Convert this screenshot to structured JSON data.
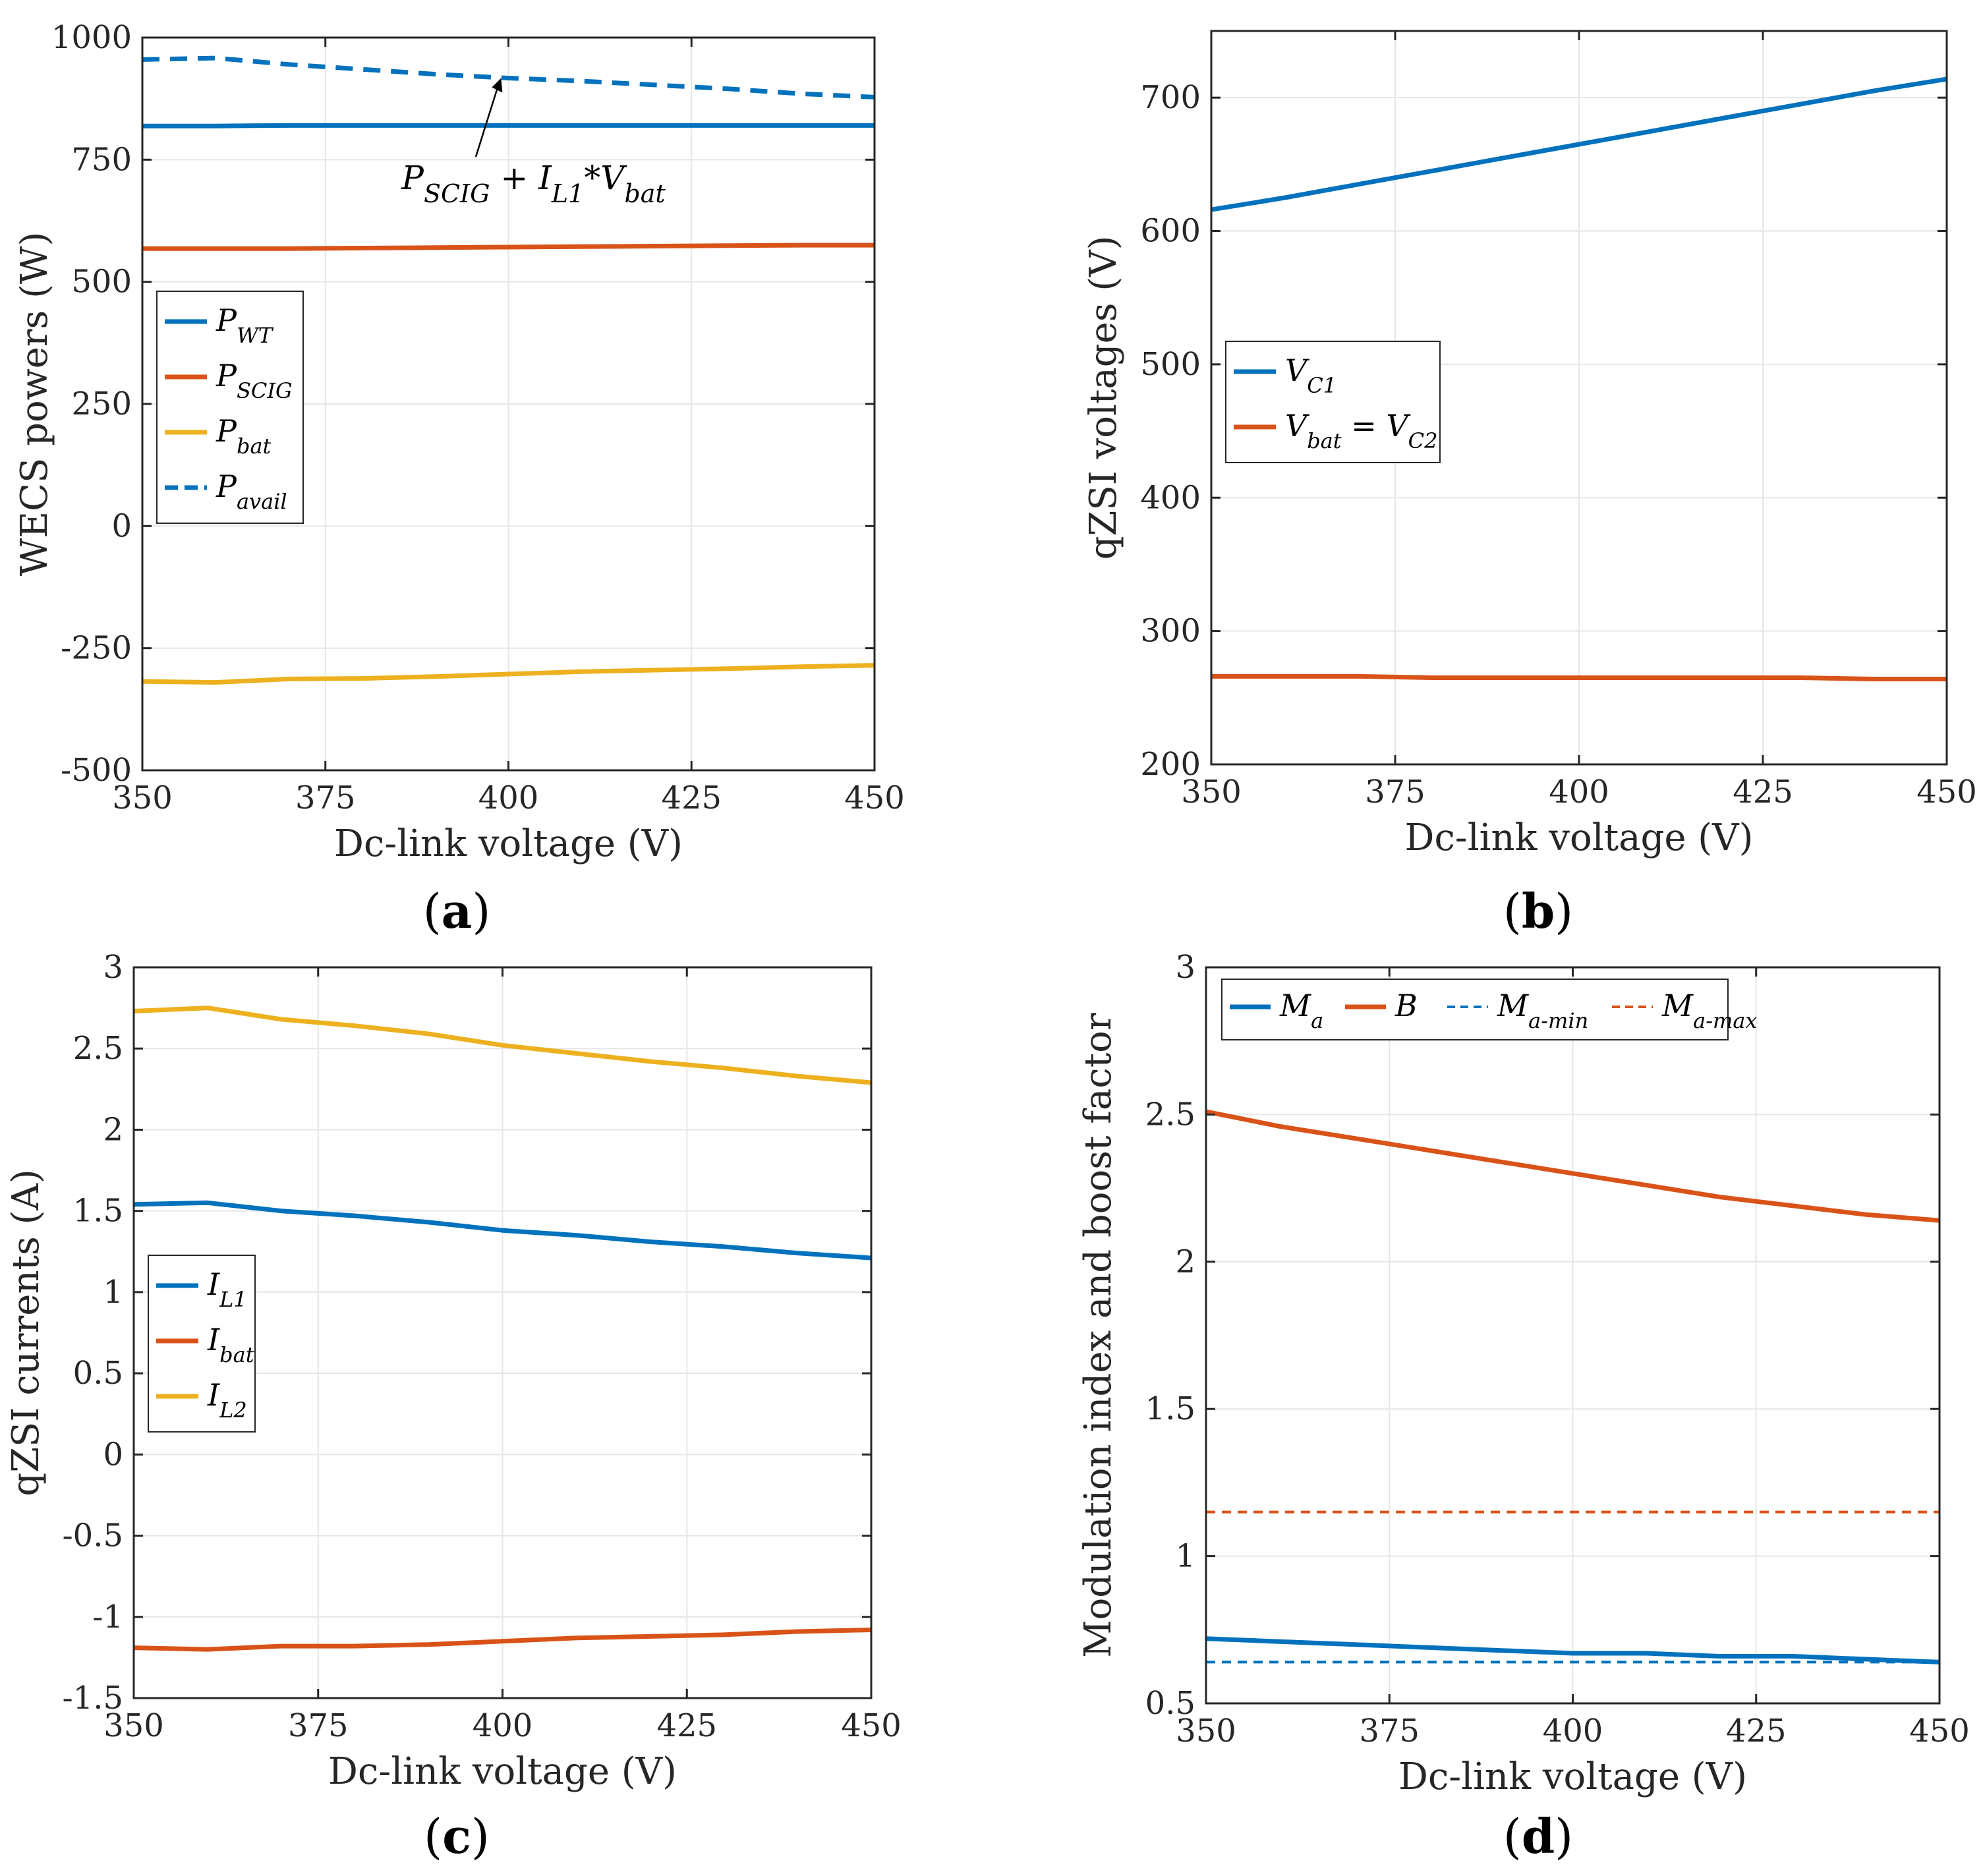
{
  "colors": {
    "blue": "#0072BD",
    "orange": "#D95319",
    "yellow": "#EDB120",
    "grid": "#e6e6e6",
    "axis": "#262626"
  },
  "chart_data": [
    {
      "id": "a",
      "type": "line",
      "panel_label": "(a)",
      "panel_label_letter": "a",
      "xlabel": "Dc-link voltage (V)",
      "ylabel": "WECS powers (W)",
      "xlim": [
        350,
        450
      ],
      "ylim": [
        -500,
        1000
      ],
      "xticks": [
        350,
        375,
        400,
        425,
        450
      ],
      "yticks": [
        -500,
        -250,
        0,
        250,
        500,
        750,
        1000
      ],
      "grid": true,
      "legend_position": "middle-left",
      "x": [
        350,
        360,
        370,
        380,
        390,
        400,
        410,
        420,
        430,
        440,
        450
      ],
      "series": [
        {
          "name": "P_WT",
          "legend_main": "P",
          "legend_sub": "WT",
          "color": "blue",
          "dash": false,
          "values": [
            819,
            819,
            820,
            820,
            820,
            820,
            820,
            820,
            820,
            820,
            820
          ]
        },
        {
          "name": "P_SCIG",
          "legend_main": "P",
          "legend_sub": "SCIG",
          "color": "orange",
          "dash": false,
          "values": [
            568,
            568,
            568,
            569,
            570,
            571,
            572,
            573,
            574,
            575,
            575
          ]
        },
        {
          "name": "P_bat",
          "legend_main": "P",
          "legend_sub": "bat",
          "color": "yellow",
          "dash": false,
          "values": [
            -318,
            -320,
            -313,
            -312,
            -308,
            -303,
            -298,
            -295,
            -292,
            -288,
            -285
          ]
        },
        {
          "name": "P_avail",
          "legend_main": "P",
          "legend_sub": "avail",
          "color": "blue",
          "dash": true,
          "values": [
            955,
            958,
            945,
            935,
            925,
            917,
            911,
            903,
            895,
            885,
            878
          ]
        }
      ],
      "annotation": {
        "text_parts": [
          "P",
          "SCIG",
          " + I",
          "L1",
          "*V",
          "bat"
        ],
        "point_x": 399,
        "point_y": 917,
        "text_x": 380,
        "text_y": 690
      }
    },
    {
      "id": "b",
      "type": "line",
      "panel_label": "(b)",
      "panel_label_letter": "b",
      "xlabel": "Dc-link voltage (V)",
      "ylabel": "qZSI voltages (V)",
      "xlim": [
        350,
        450
      ],
      "ylim": [
        200,
        750
      ],
      "xticks": [
        350,
        375,
        400,
        425,
        450
      ],
      "yticks": [
        200,
        300,
        400,
        500,
        600,
        700
      ],
      "grid": true,
      "legend_position": "middle-left",
      "x": [
        350,
        360,
        370,
        380,
        390,
        400,
        410,
        420,
        430,
        440,
        450
      ],
      "series": [
        {
          "name": "V_C1",
          "legend_main": "V",
          "legend_sub": "C1",
          "color": "blue",
          "dash": false,
          "values": [
            616,
            625,
            635,
            645,
            655,
            665,
            675,
            685,
            695,
            705,
            714
          ]
        },
        {
          "name": "V_bat = V_C2",
          "legend_main": "V",
          "legend_sub": "bat",
          "legend_tail": " = V",
          "legend_tail_sub": "C2",
          "color": "orange",
          "dash": false,
          "values": [
            266,
            266,
            266,
            265,
            265,
            265,
            265,
            265,
            265,
            264,
            264
          ]
        }
      ]
    },
    {
      "id": "c",
      "type": "line",
      "panel_label": "(c)",
      "panel_label_letter": "c",
      "xlabel": "Dc-link voltage (V)",
      "ylabel": "qZSI currents (A)",
      "xlim": [
        350,
        450
      ],
      "ylim": [
        -1.5,
        3
      ],
      "xticks": [
        350,
        375,
        400,
        425,
        450
      ],
      "yticks": [
        -1.5,
        -1,
        -0.5,
        0,
        0.5,
        1,
        1.5,
        2,
        2.5,
        3
      ],
      "ytick_labels": [
        "-1.5",
        "-1",
        "-0.5",
        "0",
        "0.5",
        "1",
        "1.5",
        "2",
        "2.5",
        "3"
      ],
      "grid": true,
      "legend_position": "middle-left",
      "x": [
        350,
        360,
        370,
        380,
        390,
        400,
        410,
        420,
        430,
        440,
        450
      ],
      "series": [
        {
          "name": "I_L1",
          "legend_main": "I",
          "legend_sub": "L1",
          "color": "blue",
          "dash": false,
          "values": [
            1.54,
            1.55,
            1.5,
            1.47,
            1.43,
            1.38,
            1.35,
            1.31,
            1.28,
            1.24,
            1.21
          ]
        },
        {
          "name": "I_bat",
          "legend_main": "I",
          "legend_sub": "bat",
          "color": "orange",
          "dash": false,
          "values": [
            -1.19,
            -1.2,
            -1.18,
            -1.18,
            -1.17,
            -1.15,
            -1.13,
            -1.12,
            -1.11,
            -1.09,
            -1.08
          ]
        },
        {
          "name": "I_L2",
          "legend_main": "I",
          "legend_sub": "L2",
          "color": "yellow",
          "dash": false,
          "values": [
            2.73,
            2.75,
            2.68,
            2.64,
            2.59,
            2.52,
            2.47,
            2.42,
            2.38,
            2.33,
            2.29
          ]
        }
      ]
    },
    {
      "id": "d",
      "type": "line",
      "panel_label": "(d)",
      "panel_label_letter": "d",
      "xlabel": "Dc-link voltage (V)",
      "ylabel": "Modulation index and boost factor",
      "xlim": [
        350,
        450
      ],
      "ylim": [
        0.5,
        3
      ],
      "xticks": [
        350,
        375,
        400,
        425,
        450
      ],
      "yticks": [
        0.5,
        1,
        1.5,
        2,
        2.5,
        3
      ],
      "ytick_labels": [
        "0.5",
        "1",
        "1.5",
        "2",
        "2.5",
        "3"
      ],
      "grid": true,
      "legend_position": "top-left",
      "legend_orientation": "horizontal",
      "x": [
        350,
        360,
        370,
        380,
        390,
        400,
        410,
        420,
        430,
        440,
        450
      ],
      "series": [
        {
          "name": "M_a",
          "legend_main": "M",
          "legend_sub": "a",
          "color": "blue",
          "dash": false,
          "values": [
            0.72,
            0.71,
            0.7,
            0.69,
            0.68,
            0.67,
            0.67,
            0.66,
            0.66,
            0.65,
            0.64
          ]
        },
        {
          "name": "B",
          "legend_main": "B",
          "legend_sub": "",
          "color": "orange",
          "dash": false,
          "values": [
            2.51,
            2.46,
            2.42,
            2.38,
            2.34,
            2.3,
            2.26,
            2.22,
            2.19,
            2.16,
            2.14
          ]
        },
        {
          "name": "M_a-min",
          "legend_main": "M",
          "legend_sub": "a-min",
          "color": "blue",
          "dash": true,
          "values": [
            0.64,
            0.64,
            0.64,
            0.64,
            0.64,
            0.64,
            0.64,
            0.64,
            0.64,
            0.64,
            0.64
          ]
        },
        {
          "name": "M_a-max",
          "legend_main": "M",
          "legend_sub": "a-max",
          "color": "orange",
          "dash": true,
          "values": [
            1.15,
            1.15,
            1.15,
            1.15,
            1.15,
            1.15,
            1.15,
            1.15,
            1.15,
            1.15,
            1.15
          ]
        }
      ]
    }
  ]
}
